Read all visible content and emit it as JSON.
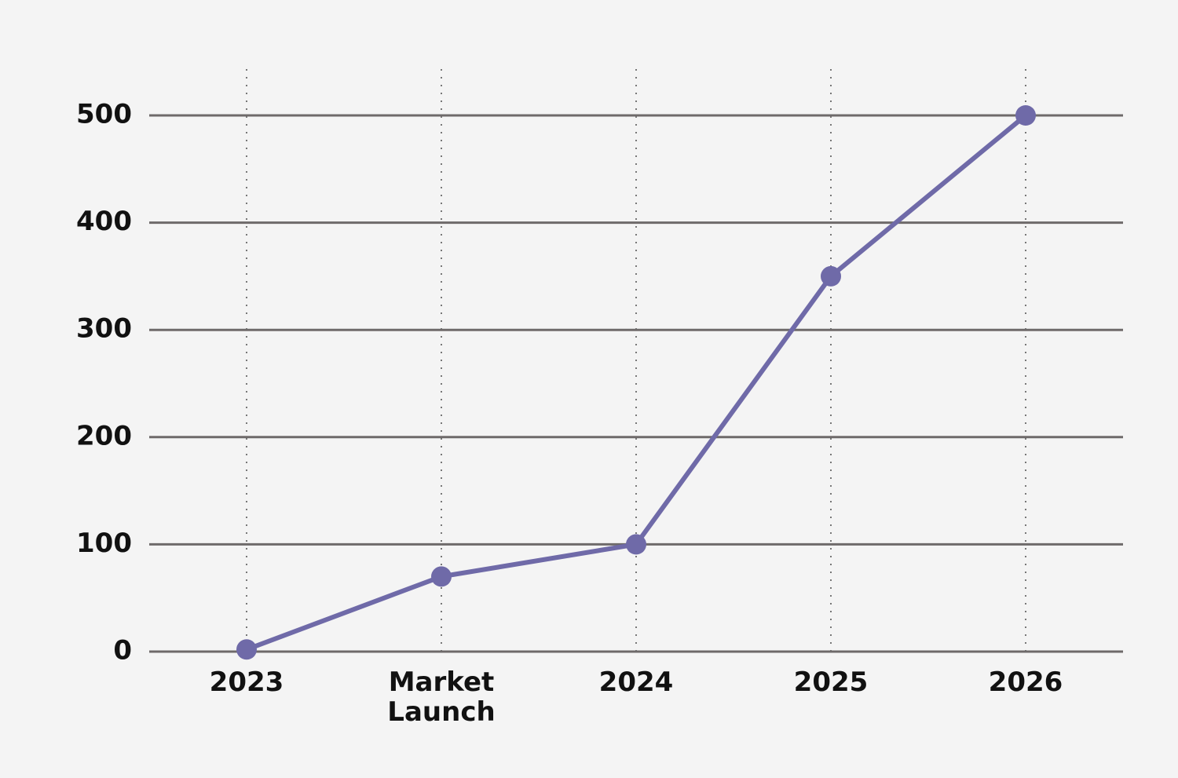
{
  "chart_data": {
    "type": "line",
    "categories": [
      "2023",
      "Market Launch",
      "2024",
      "2025",
      "2026"
    ],
    "series": [
      {
        "color": "#6f6aa8",
        "values": [
          2,
          70,
          100,
          350,
          500
        ]
      }
    ],
    "ylim": [
      0,
      500
    ],
    "yticks": [
      0,
      100,
      200,
      300,
      400,
      500
    ],
    "grid": true
  }
}
